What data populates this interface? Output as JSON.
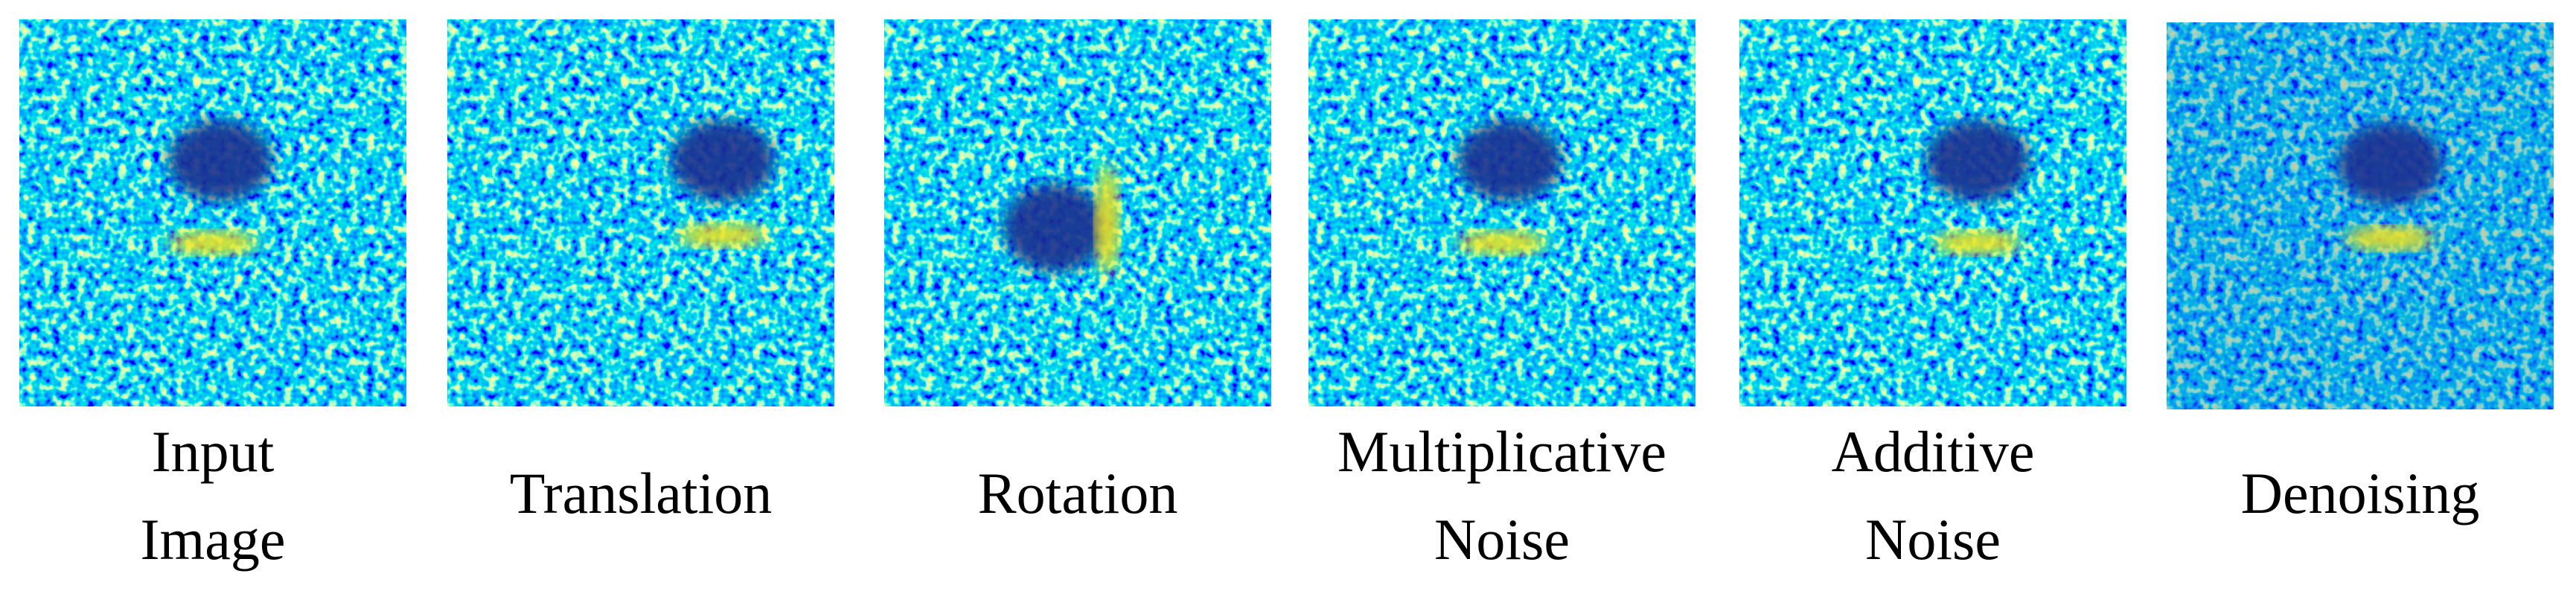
{
  "panels": [
    {
      "label": [
        "Input",
        "Image"
      ]
    },
    {
      "label": [
        "Translation"
      ]
    },
    {
      "label": [
        "Rotation"
      ]
    },
    {
      "label": [
        "Multiplicative",
        "Noise"
      ]
    },
    {
      "label": [
        "Additive",
        "Noise"
      ]
    },
    {
      "label": [
        "Denoising"
      ]
    }
  ]
}
